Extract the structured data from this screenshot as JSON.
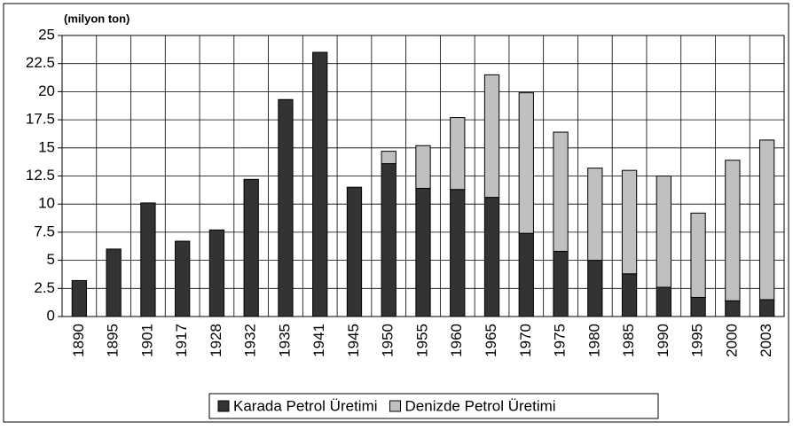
{
  "chart_data": {
    "type": "stacked_bar",
    "y_axis_label": "(milyon ton)",
    "categories": [
      "1890",
      "1895",
      "1901",
      "1917",
      "1928",
      "1932",
      "1935",
      "1941",
      "1945",
      "1950",
      "1955",
      "1960",
      "1965",
      "1970",
      "1975",
      "1980",
      "1985",
      "1990",
      "1995",
      "2000",
      "2003"
    ],
    "series": [
      {
        "name": "Karada Petrol Üretimi",
        "color": "#333333",
        "values": [
          3.2,
          6.0,
          10.1,
          6.7,
          7.7,
          12.2,
          19.3,
          23.5,
          11.5,
          13.6,
          11.4,
          11.3,
          10.6,
          7.4,
          5.8,
          5.0,
          3.8,
          2.6,
          1.7,
          1.4,
          1.5
        ]
      },
      {
        "name": "Denizde Petrol Üretimi",
        "color": "#c0c0c0",
        "values": [
          0,
          0,
          0,
          0,
          0,
          0,
          0,
          0,
          0,
          1.1,
          3.8,
          6.4,
          10.9,
          12.5,
          10.6,
          8.2,
          9.2,
          9.9,
          7.5,
          12.5,
          14.2
        ]
      }
    ],
    "ylim": [
      0,
      25
    ],
    "yticks": [
      0,
      2.5,
      5,
      7.5,
      10,
      12.5,
      15,
      17.5,
      20,
      22.5,
      25
    ],
    "grid": true,
    "legend": "bottom"
  }
}
